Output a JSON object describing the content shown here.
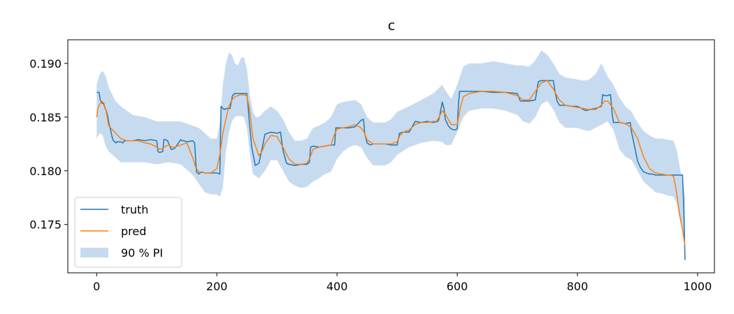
{
  "chart_data": {
    "type": "line",
    "title": "c",
    "xlabel": "",
    "ylabel": "",
    "xlim": [
      -48,
      1028
    ],
    "ylim": [
      0.1705,
      0.1922
    ],
    "xticks": [
      0,
      200,
      400,
      600,
      800,
      1000
    ],
    "yticks": [
      0.175,
      0.18,
      0.185,
      0.19
    ],
    "xtick_labels": [
      "0",
      "200",
      "400",
      "600",
      "800",
      "1000"
    ],
    "ytick_labels": [
      "0.175",
      "0.180",
      "0.185",
      "0.190"
    ],
    "legend_position": "lower-left",
    "series": [
      {
        "name": "truth",
        "kind": "line",
        "color": "#1f77b4",
        "x": [
          0,
          4,
          6,
          9,
          12,
          14,
          16,
          18,
          21,
          24,
          26,
          28,
          30,
          32,
          34,
          40,
          44,
          46,
          50,
          60,
          70,
          80,
          90,
          100,
          102,
          105,
          110,
          112,
          114,
          118,
          124,
          126,
          130,
          140,
          142,
          145,
          150,
          160,
          163,
          166,
          170,
          175,
          180,
          190,
          200,
          205,
          207,
          212,
          216,
          222,
          226,
          230,
          240,
          250,
          252,
          254,
          258,
          264,
          270,
          275,
          280,
          290,
          300,
          306,
          310,
          316,
          320,
          330,
          340,
          350,
          354,
          356,
          360,
          370,
          380,
          390,
          396,
          398,
          400,
          410,
          420,
          430,
          440,
          444,
          446,
          450,
          455,
          460,
          470,
          480,
          490,
          500,
          504,
          510,
          520,
          530,
          540,
          550,
          560,
          568,
          570,
          575,
          578,
          580,
          585,
          590,
          595,
          600,
          602,
          604,
          610,
          620,
          640,
          660,
          680,
          700,
          705,
          710,
          720,
          730,
          735,
          740,
          750,
          760,
          763,
          766,
          770,
          780,
          790,
          800,
          810,
          815,
          820,
          830,
          840,
          842,
          845,
          850,
          855,
          858,
          860,
          870,
          880,
          888,
          890,
          895,
          900,
          905,
          910,
          915,
          920,
          925,
          930,
          940,
          950,
          960,
          970,
          975,
          977,
          979
        ],
        "y": [
          0.1873,
          0.1873,
          0.1866,
          0.1863,
          0.1862,
          0.1858,
          0.1856,
          0.1852,
          0.1843,
          0.1836,
          0.1831,
          0.1828,
          0.1827,
          0.1826,
          0.1827,
          0.1827,
          0.1826,
          0.1828,
          0.1828,
          0.1828,
          0.1829,
          0.1828,
          0.1829,
          0.1828,
          0.1818,
          0.1817,
          0.1818,
          0.1829,
          0.1829,
          0.1828,
          0.182,
          0.182,
          0.1821,
          0.1829,
          0.1828,
          0.1828,
          0.1827,
          0.1828,
          0.1826,
          0.1799,
          0.1797,
          0.1799,
          0.1798,
          0.1798,
          0.1798,
          0.1797,
          0.186,
          0.1857,
          0.1858,
          0.1858,
          0.187,
          0.1872,
          0.1872,
          0.1872,
          0.186,
          0.1846,
          0.1822,
          0.1805,
          0.1807,
          0.182,
          0.1834,
          0.1836,
          0.1835,
          0.1836,
          0.1819,
          0.1807,
          0.1806,
          0.1805,
          0.1806,
          0.1806,
          0.1808,
          0.1822,
          0.1823,
          0.1822,
          0.1823,
          0.1824,
          0.1824,
          0.184,
          0.184,
          0.184,
          0.184,
          0.1841,
          0.1847,
          0.1848,
          0.1835,
          0.1826,
          0.1824,
          0.1825,
          0.1825,
          0.1825,
          0.1824,
          0.1824,
          0.1835,
          0.1836,
          0.1836,
          0.1846,
          0.1845,
          0.1846,
          0.1845,
          0.1846,
          0.1849,
          0.1864,
          0.1858,
          0.1848,
          0.1842,
          0.1839,
          0.1838,
          0.1839,
          0.1862,
          0.1874,
          0.1874,
          0.1874,
          0.1874,
          0.1873,
          0.1873,
          0.1872,
          0.1865,
          0.1865,
          0.1865,
          0.1866,
          0.1883,
          0.1884,
          0.1884,
          0.1884,
          0.1873,
          0.1865,
          0.1861,
          0.1861,
          0.186,
          0.186,
          0.1857,
          0.1856,
          0.1857,
          0.1858,
          0.186,
          0.1871,
          0.187,
          0.187,
          0.1871,
          0.1852,
          0.1845,
          0.1845,
          0.1844,
          0.1845,
          0.1836,
          0.1823,
          0.1809,
          0.1803,
          0.1799,
          0.1798,
          0.1797,
          0.1797,
          0.1796,
          0.1796,
          0.1796,
          0.1796,
          0.1796,
          0.1796,
          0.1763,
          0.1717
        ]
      },
      {
        "name": "pred",
        "kind": "line",
        "color": "#ff7f0e",
        "x": [
          0,
          2,
          5,
          8,
          12,
          16,
          20,
          30,
          40,
          50,
          60,
          70,
          80,
          90,
          100,
          105,
          110,
          115,
          120,
          125,
          130,
          140,
          150,
          160,
          165,
          170,
          180,
          190,
          200,
          205,
          210,
          215,
          220,
          225,
          230,
          240,
          250,
          255,
          260,
          270,
          275,
          280,
          290,
          300,
          310,
          320,
          330,
          340,
          350,
          355,
          360,
          370,
          380,
          390,
          395,
          400,
          410,
          420,
          430,
          440,
          445,
          450,
          460,
          470,
          480,
          490,
          500,
          505,
          510,
          520,
          530,
          540,
          550,
          560,
          565,
          570,
          575,
          580,
          590,
          600,
          605,
          610,
          620,
          640,
          660,
          680,
          700,
          710,
          720,
          730,
          740,
          750,
          760,
          770,
          780,
          790,
          800,
          810,
          820,
          830,
          840,
          845,
          850,
          860,
          870,
          880,
          890,
          900,
          910,
          920,
          930,
          940,
          950,
          955,
          960,
          965,
          970,
          975,
          979
        ],
        "y": [
          0.185,
          0.1858,
          0.1862,
          0.1865,
          0.1863,
          0.1855,
          0.1842,
          0.1836,
          0.183,
          0.1828,
          0.1828,
          0.1828,
          0.1826,
          0.1825,
          0.1822,
          0.182,
          0.1821,
          0.1823,
          0.1824,
          0.1822,
          0.1822,
          0.1824,
          0.1826,
          0.1812,
          0.1803,
          0.1799,
          0.1798,
          0.1798,
          0.1802,
          0.1815,
          0.1835,
          0.1848,
          0.186,
          0.1866,
          0.1869,
          0.1871,
          0.187,
          0.1855,
          0.183,
          0.1814,
          0.1818,
          0.1825,
          0.1833,
          0.1832,
          0.1822,
          0.1811,
          0.1806,
          0.1806,
          0.1807,
          0.1812,
          0.182,
          0.1822,
          0.1823,
          0.1824,
          0.1833,
          0.1839,
          0.184,
          0.1841,
          0.1843,
          0.184,
          0.1836,
          0.1829,
          0.1825,
          0.1825,
          0.1825,
          0.1825,
          0.1827,
          0.1833,
          0.1836,
          0.1838,
          0.1843,
          0.1845,
          0.1845,
          0.1846,
          0.1846,
          0.185,
          0.1856,
          0.1853,
          0.1843,
          0.1843,
          0.1858,
          0.1869,
          0.1872,
          0.1874,
          0.1874,
          0.1873,
          0.187,
          0.1866,
          0.1866,
          0.1874,
          0.1882,
          0.1884,
          0.1876,
          0.1866,
          0.1861,
          0.186,
          0.1859,
          0.1858,
          0.1857,
          0.1857,
          0.1861,
          0.1865,
          0.1865,
          0.1858,
          0.1845,
          0.1844,
          0.184,
          0.183,
          0.1813,
          0.1802,
          0.1798,
          0.1797,
          0.1796,
          0.1796,
          0.1795,
          0.178,
          0.176,
          0.1745,
          0.173
        ]
      },
      {
        "name": "90 % PI",
        "kind": "band",
        "color": "#c6dbef",
        "x": [
          0,
          5,
          10,
          15,
          20,
          30,
          40,
          60,
          80,
          100,
          120,
          140,
          160,
          170,
          180,
          190,
          200,
          205,
          210,
          215,
          220,
          225,
          230,
          235,
          240,
          245,
          250,
          255,
          260,
          265,
          270,
          280,
          290,
          300,
          310,
          320,
          330,
          340,
          350,
          360,
          370,
          380,
          390,
          400,
          410,
          420,
          430,
          440,
          450,
          460,
          470,
          480,
          490,
          500,
          520,
          540,
          560,
          575,
          580,
          590,
          600,
          610,
          620,
          640,
          660,
          680,
          700,
          710,
          720,
          730,
          740,
          750,
          760,
          770,
          780,
          790,
          800,
          810,
          820,
          830,
          840,
          850,
          860,
          870,
          880,
          890,
          900,
          910,
          920,
          930,
          940,
          950,
          960,
          965,
          970,
          975,
          979
        ],
        "lower": [
          0.183,
          0.1835,
          0.1833,
          0.1823,
          0.1818,
          0.1813,
          0.1808,
          0.1808,
          0.1808,
          0.1806,
          0.1808,
          0.1806,
          0.1796,
          0.1788,
          0.178,
          0.1778,
          0.1778,
          0.1776,
          0.1784,
          0.1818,
          0.1835,
          0.1846,
          0.185,
          0.1851,
          0.1851,
          0.185,
          0.184,
          0.1815,
          0.1797,
          0.1795,
          0.1793,
          0.18,
          0.181,
          0.181,
          0.18,
          0.179,
          0.1786,
          0.1784,
          0.1785,
          0.179,
          0.1793,
          0.1797,
          0.1799,
          0.1811,
          0.1818,
          0.1822,
          0.1824,
          0.1822,
          0.1812,
          0.1805,
          0.1805,
          0.1805,
          0.1808,
          0.1815,
          0.1822,
          0.1826,
          0.1828,
          0.1827,
          0.1824,
          0.1824,
          0.1836,
          0.185,
          0.1856,
          0.1858,
          0.1858,
          0.1856,
          0.1852,
          0.1846,
          0.1844,
          0.185,
          0.1862,
          0.1865,
          0.1857,
          0.1845,
          0.184,
          0.184,
          0.184,
          0.1838,
          0.1837,
          0.184,
          0.1843,
          0.1846,
          0.1838,
          0.182,
          0.1813,
          0.181,
          0.18,
          0.179,
          0.1785,
          0.178,
          0.1779,
          0.1777,
          0.1776,
          0.177,
          0.1755,
          0.1743,
          0.1733
        ],
        "upper": [
          0.188,
          0.189,
          0.1893,
          0.1888,
          0.1878,
          0.1866,
          0.186,
          0.1852,
          0.185,
          0.1846,
          0.1846,
          0.1846,
          0.1842,
          0.184,
          0.1835,
          0.183,
          0.183,
          0.1845,
          0.188,
          0.19,
          0.191,
          0.1908,
          0.19,
          0.1898,
          0.1905,
          0.1906,
          0.1895,
          0.187,
          0.1855,
          0.185,
          0.185,
          0.1856,
          0.186,
          0.1856,
          0.1848,
          0.1836,
          0.1828,
          0.1828,
          0.183,
          0.184,
          0.1842,
          0.1845,
          0.185,
          0.1862,
          0.1864,
          0.1865,
          0.1866,
          0.1862,
          0.185,
          0.1845,
          0.1845,
          0.1845,
          0.1848,
          0.1855,
          0.186,
          0.1866,
          0.1872,
          0.188,
          0.1875,
          0.1867,
          0.188,
          0.1897,
          0.19,
          0.19,
          0.1902,
          0.19,
          0.1898,
          0.1898,
          0.1897,
          0.1903,
          0.1912,
          0.1908,
          0.19,
          0.189,
          0.1887,
          0.1886,
          0.1885,
          0.1884,
          0.1885,
          0.189,
          0.19,
          0.1888,
          0.188,
          0.1868,
          0.186,
          0.1855,
          0.1845,
          0.1837,
          0.1833,
          0.183,
          0.183,
          0.1829,
          0.1828,
          0.182,
          0.1805,
          0.179,
          0.1777
        ]
      }
    ]
  }
}
